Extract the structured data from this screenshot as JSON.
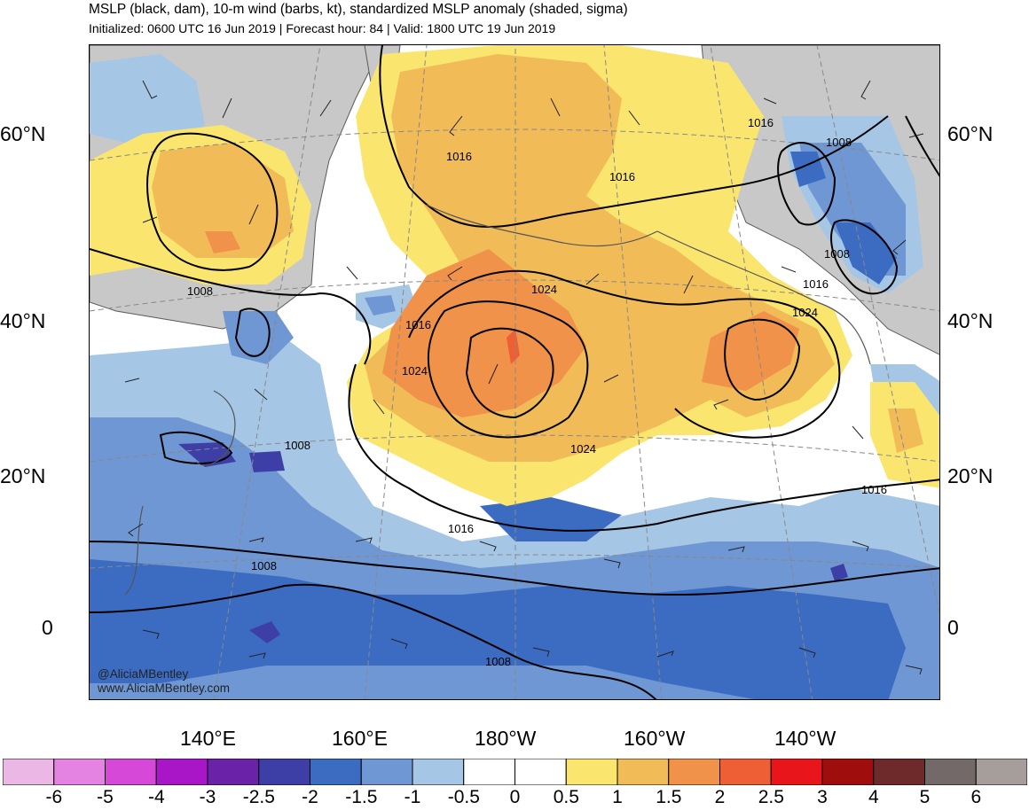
{
  "title": "MSLP (black, dam), 10-m wind (barbs, kt), standardized MSLP anomaly (shaded, sigma)",
  "subtitle": "Initialized: 0600 UTC 16 Jun 2019 | Forecast hour: 84 | Valid: 1800 UTC 19 Jun 2019",
  "lat_labels": [
    "60°N",
    "40°N",
    "20°N",
    "0"
  ],
  "lon_labels": [
    "140°E",
    "160°E",
    "180°W",
    "160°W",
    "140°W"
  ],
  "credit": {
    "twitter": "@AliciaMBentley",
    "website": "www.AliciaMBentley.com"
  },
  "isobar_labels": [
    "1016",
    "1016",
    "1016",
    "1008",
    "1008",
    "1016",
    "1024",
    "1024",
    "1024",
    "1016",
    "1024",
    "1008",
    "1008",
    "1016",
    "1016",
    "1008",
    "1008"
  ],
  "colorbar": {
    "ticks": [
      "-6",
      "-5",
      "-4",
      "-3",
      "-2.5",
      "-2",
      "-1.5",
      "-1",
      "-0.5",
      "0",
      "0.5",
      "1",
      "1.5",
      "2",
      "2.5",
      "3",
      "4",
      "5",
      "6"
    ],
    "colors": [
      "#ebb8e6",
      "#e583e3",
      "#d649d8",
      "#a816c8",
      "#6a22a8",
      "#3d3fa6",
      "#3b6cc2",
      "#6f97d3",
      "#a6c6e6",
      "#ffffff",
      "#ffffff",
      "#fae56e",
      "#f1bb58",
      "#f0924a",
      "#ef5f35",
      "#e8161a",
      "#a00d0d",
      "#6e2a2a",
      "#736968",
      "#a59e9b"
    ]
  },
  "colors": {
    "land": "#c8c8c8",
    "isobar": "#000000",
    "coast": "#555555"
  }
}
